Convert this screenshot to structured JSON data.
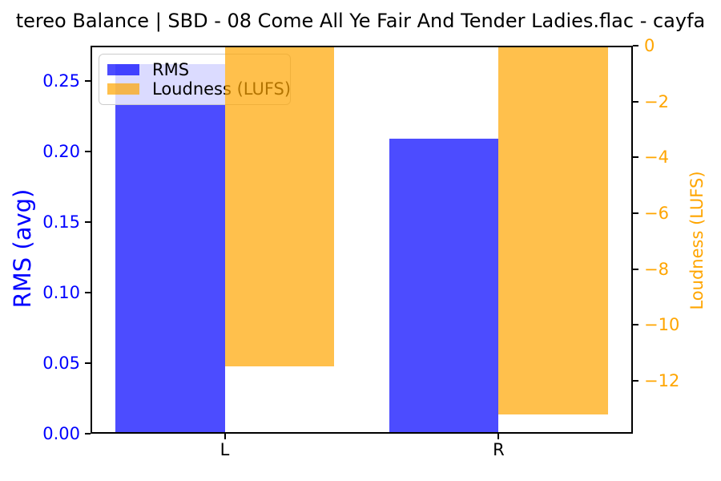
{
  "chart_data": {
    "type": "bar",
    "title": "tereo Balance | SBD - 08 Come All Ye Fair And Tender Ladies.flac - cayfa",
    "categories": [
      "L",
      "R"
    ],
    "series": [
      {
        "name": "RMS",
        "axis": "left",
        "color": "rgba(0,0,255,0.7)",
        "values": [
          0.262,
          0.209
        ]
      },
      {
        "name": "Loudness (LUFS)",
        "axis": "right",
        "color": "rgba(255,165,0,0.7)",
        "values": [
          -11.5,
          -13.2
        ]
      }
    ],
    "left_axis": {
      "label": "RMS (avg)",
      "color": "#0000ff",
      "min": 0,
      "max": 0.275,
      "tick_values": [
        0,
        0.05,
        0.1,
        0.15,
        0.2,
        0.25
      ],
      "tick_labels": [
        "0.00",
        "0.05",
        "0.10",
        "0.15",
        "0.20",
        "0.25"
      ]
    },
    "right_axis": {
      "label": "Loudness (LUFS)",
      "color": "#ffa500",
      "min": -13.9,
      "max": 0,
      "tick_values": [
        0,
        -2,
        -4,
        -6,
        -8,
        -10,
        -12
      ],
      "tick_labels": [
        "0",
        "−2",
        "−4",
        "−6",
        "−8",
        "−10",
        "−12"
      ]
    },
    "x_axis": {
      "positions": [
        0,
        1
      ],
      "xlim": [
        -0.49,
        1.49
      ],
      "bar_width": 0.4
    },
    "legend": {
      "position": "upper-left",
      "entries": [
        "RMS",
        "Loudness (LUFS)"
      ]
    },
    "grid": false
  }
}
